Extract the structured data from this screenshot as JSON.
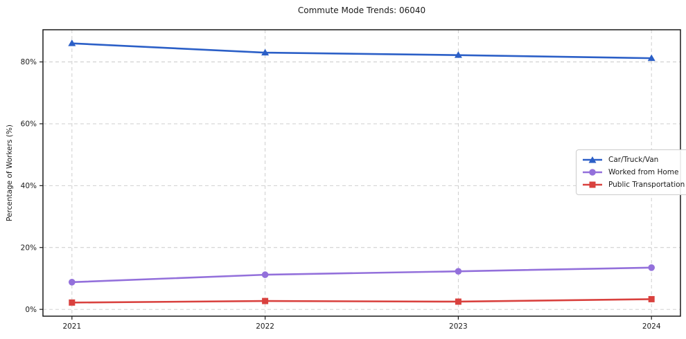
{
  "title": "Commute Mode Trends: 06040",
  "chart_data": {
    "type": "line",
    "title": "Commute Mode Trends: 06040",
    "xlabel": "",
    "ylabel": "Percentage of Workers (%)",
    "x": [
      2021,
      2022,
      2023,
      2024
    ],
    "x_tick_labels": [
      "2021",
      "2022",
      "2023",
      "2024"
    ],
    "y_ticks": [
      0,
      20,
      40,
      60,
      80
    ],
    "y_tick_labels": [
      "0%",
      "20%",
      "40%",
      "60%",
      "80%"
    ],
    "xlim": [
      2020.85,
      2024.15
    ],
    "ylim": [
      -2.2,
      90.4
    ],
    "grid": true,
    "grid_style": "dashed",
    "legend_position": "center-right",
    "colors": {
      "axis": "#1a1a1a",
      "grid": "#c9c9c9",
      "background": "#ffffff"
    },
    "series": [
      {
        "name": "Car/Truck/Van",
        "color": "#2b5fc7",
        "marker": "triangle",
        "values": [
          86.0,
          83.0,
          82.2,
          81.2
        ]
      },
      {
        "name": "Worked from Home",
        "color": "#9370db",
        "marker": "circle",
        "values": [
          8.8,
          11.2,
          12.3,
          13.5
        ]
      },
      {
        "name": "Public Transportation",
        "color": "#d9413e",
        "marker": "square",
        "values": [
          2.2,
          2.7,
          2.5,
          3.3
        ]
      }
    ]
  }
}
